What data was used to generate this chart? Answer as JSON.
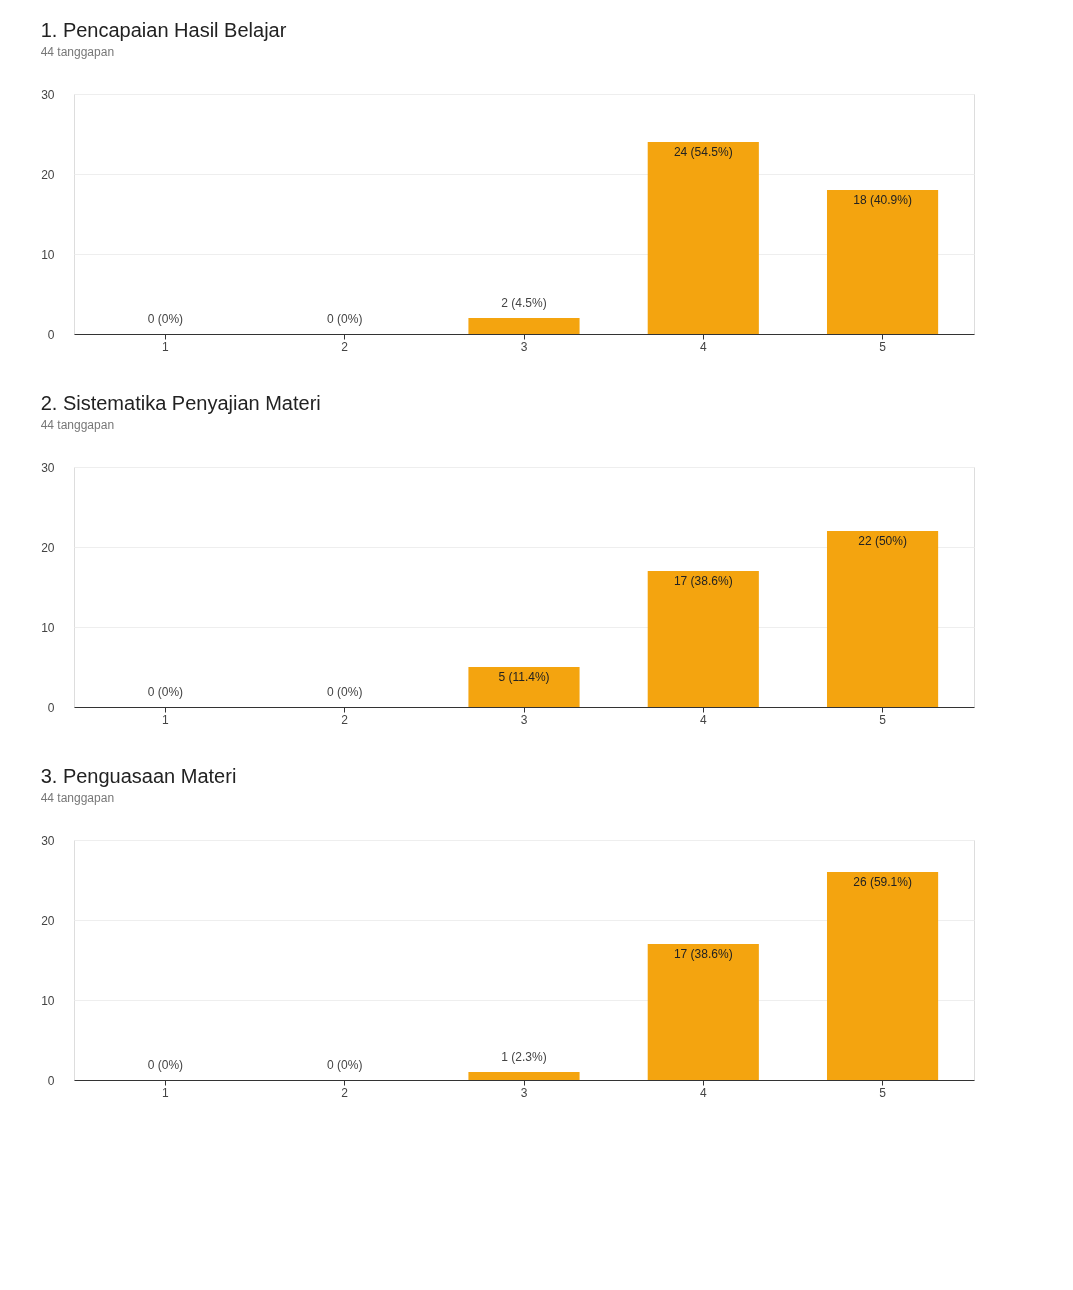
{
  "chart_data": [
    {
      "type": "bar",
      "title": "1. Pencapaian Hasil Belajar",
      "subtitle": "44 tanggapan",
      "categories": [
        "1",
        "2",
        "3",
        "4",
        "5"
      ],
      "values": [
        0,
        0,
        2,
        24,
        18
      ],
      "color": "#f4a40f",
      "value_labels": [
        "0 (0%)",
        "0 (0%)",
        "2 (4.5%)",
        "24 (54.5%)",
        "18 (40.9%)"
      ],
      "ylim": [
        0,
        30
      ],
      "yticks": [
        0,
        10,
        20,
        30
      ],
      "grid": "y"
    },
    {
      "type": "bar",
      "title": "2. Sistematika Penyajian Materi",
      "subtitle": "44 tanggapan",
      "categories": [
        "1",
        "2",
        "3",
        "4",
        "5"
      ],
      "values": [
        0,
        0,
        5,
        17,
        22
      ],
      "color": "#f4a40f",
      "value_labels": [
        "0 (0%)",
        "0 (0%)",
        "5 (11.4%)",
        "17 (38.6%)",
        "22 (50%)"
      ],
      "ylim": [
        0,
        30
      ],
      "yticks": [
        0,
        10,
        20,
        30
      ],
      "grid": "y"
    },
    {
      "type": "bar",
      "title": "3. Penguasaan Materi",
      "subtitle": "44 tanggapan",
      "categories": [
        "1",
        "2",
        "3",
        "4",
        "5"
      ],
      "values": [
        0,
        0,
        1,
        17,
        26
      ],
      "color": "#f4a40f",
      "value_labels": [
        "0 (0%)",
        "0 (0%)",
        "1 (2.3%)",
        "17 (38.6%)",
        "26 (59.1%)"
      ],
      "ylim": [
        0,
        30
      ],
      "yticks": [
        0,
        10,
        20,
        30
      ],
      "grid": "y"
    }
  ]
}
